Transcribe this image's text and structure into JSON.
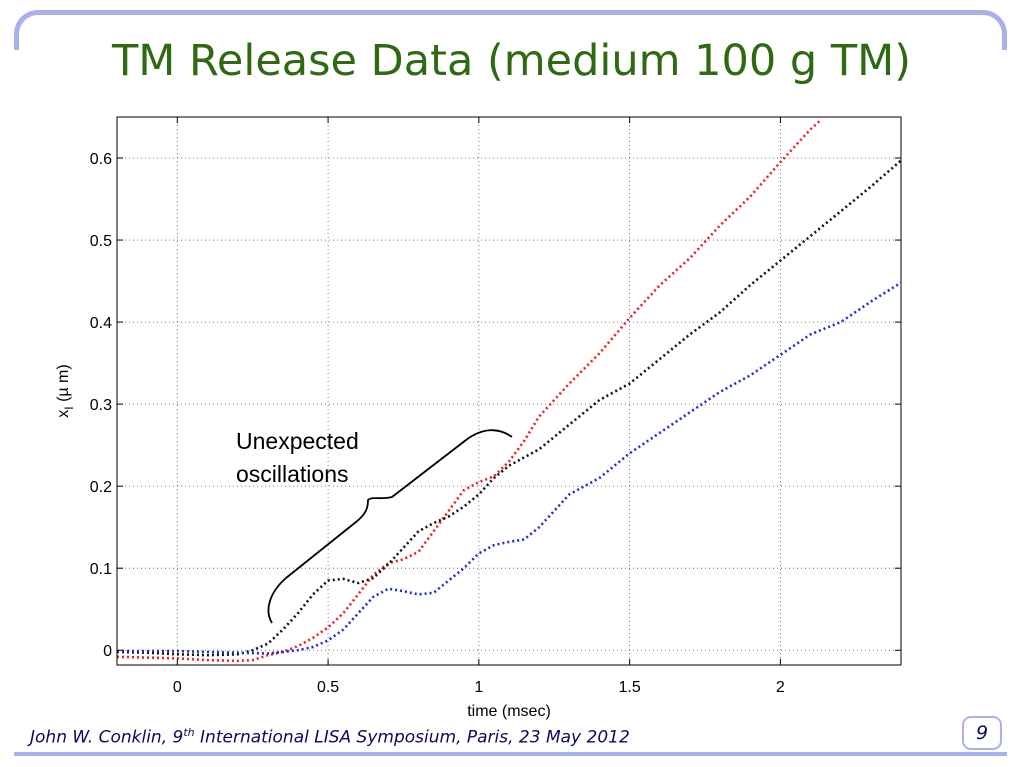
{
  "slide": {
    "title": "TM Release Data (medium 100 g TM)",
    "footer": {
      "author": "John W. Conklin, 9",
      "superscript": "th",
      "rest": " International LISA Symposium, Paris, 23 May 2012"
    },
    "page_number": "9",
    "colors": {
      "title": "#2f6a12",
      "frame": "#a9b0ee",
      "footer_text": "#0a0a60"
    }
  },
  "chart_data": {
    "type": "line",
    "title": "",
    "xlabel": "time (msec)",
    "ylabel_main": "x",
    "ylabel_sub": "I",
    "ylabel_unit": " (µ m)",
    "xlim": [
      -0.2,
      2.4
    ],
    "ylim": [
      -0.018,
      0.65
    ],
    "grid": true,
    "xticks": [
      0,
      0.5,
      1,
      1.5,
      2
    ],
    "xtick_labels": [
      "0",
      "0.5",
      "1",
      "1.5",
      "2"
    ],
    "yticks": [
      0,
      0.1,
      0.2,
      0.3,
      0.4,
      0.5,
      0.6
    ],
    "ytick_labels": [
      "0",
      "0.1",
      "0.2",
      "0.3",
      "0.4",
      "0.5",
      "0.6"
    ],
    "annotation": {
      "lines": [
        "Unexpected",
        "oscillations"
      ]
    },
    "series": [
      {
        "color": "#ee1c1c",
        "x": [
          -0.2,
          -0.1,
          0.0,
          0.1,
          0.2,
          0.25,
          0.3,
          0.35,
          0.4,
          0.45,
          0.5,
          0.55,
          0.6,
          0.65,
          0.7,
          0.75,
          0.8,
          0.85,
          0.9,
          0.95,
          1.0,
          1.05,
          1.1,
          1.15,
          1.2,
          1.25,
          1.3,
          1.4,
          1.5,
          1.6,
          1.7,
          1.8,
          1.9,
          2.0,
          2.1,
          2.13
        ],
        "y": [
          -0.008,
          -0.009,
          -0.01,
          -0.012,
          -0.013,
          -0.012,
          -0.006,
          -0.002,
          0.005,
          0.015,
          0.028,
          0.045,
          0.068,
          0.092,
          0.106,
          0.111,
          0.12,
          0.145,
          0.17,
          0.195,
          0.205,
          0.212,
          0.23,
          0.255,
          0.285,
          0.305,
          0.325,
          0.362,
          0.405,
          0.445,
          0.478,
          0.518,
          0.553,
          0.595,
          0.635,
          0.645
        ]
      },
      {
        "color": "#111111",
        "x": [
          -0.2,
          -0.1,
          0.0,
          0.1,
          0.2,
          0.25,
          0.3,
          0.35,
          0.4,
          0.45,
          0.5,
          0.55,
          0.6,
          0.65,
          0.7,
          0.75,
          0.8,
          0.85,
          0.9,
          0.95,
          1.0,
          1.05,
          1.1,
          1.2,
          1.3,
          1.4,
          1.5,
          1.6,
          1.7,
          1.8,
          1.9,
          2.0,
          2.1,
          2.2,
          2.3,
          2.4
        ],
        "y": [
          -0.002,
          -0.003,
          -0.005,
          -0.006,
          -0.005,
          0.0,
          0.008,
          0.025,
          0.045,
          0.068,
          0.085,
          0.087,
          0.082,
          0.088,
          0.105,
          0.125,
          0.145,
          0.155,
          0.163,
          0.175,
          0.19,
          0.21,
          0.225,
          0.245,
          0.275,
          0.305,
          0.325,
          0.355,
          0.385,
          0.412,
          0.445,
          0.475,
          0.505,
          0.535,
          0.565,
          0.597
        ]
      },
      {
        "color": "#1c2bd6",
        "x": [
          -0.2,
          -0.1,
          0.0,
          0.1,
          0.2,
          0.3,
          0.35,
          0.4,
          0.45,
          0.5,
          0.55,
          0.6,
          0.65,
          0.7,
          0.75,
          0.8,
          0.85,
          0.9,
          0.95,
          1.0,
          1.05,
          1.1,
          1.15,
          1.2,
          1.3,
          1.4,
          1.5,
          1.6,
          1.7,
          1.8,
          1.9,
          2.0,
          2.1,
          2.2,
          2.3,
          2.4
        ],
        "y": [
          -0.001,
          -0.001,
          -0.001,
          -0.002,
          -0.003,
          -0.004,
          -0.002,
          0.0,
          0.004,
          0.012,
          0.025,
          0.045,
          0.065,
          0.075,
          0.072,
          0.068,
          0.07,
          0.085,
          0.1,
          0.118,
          0.128,
          0.132,
          0.135,
          0.15,
          0.19,
          0.21,
          0.24,
          0.265,
          0.29,
          0.315,
          0.335,
          0.36,
          0.385,
          0.4,
          0.425,
          0.448
        ]
      }
    ]
  }
}
